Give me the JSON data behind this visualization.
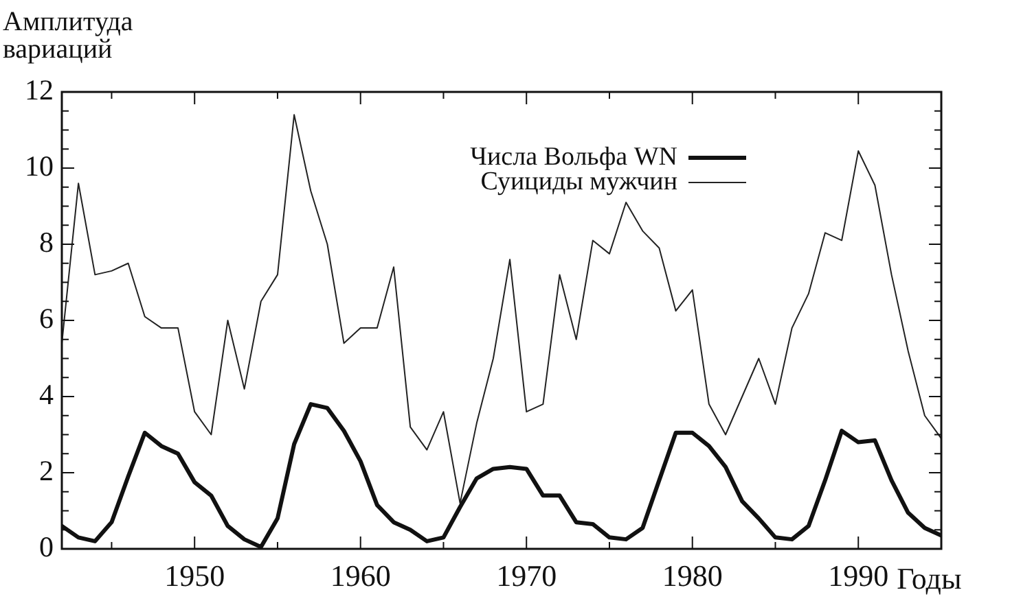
{
  "chart_data": {
    "type": "line",
    "ylabel": "Амплитуда вариаций",
    "xlabel": "Годы",
    "x": [
      1942,
      1943,
      1944,
      1945,
      1946,
      1947,
      1948,
      1949,
      1950,
      1951,
      1952,
      1953,
      1954,
      1955,
      1956,
      1957,
      1958,
      1959,
      1960,
      1961,
      1962,
      1963,
      1964,
      1965,
      1966,
      1967,
      1968,
      1969,
      1970,
      1971,
      1972,
      1973,
      1974,
      1975,
      1976,
      1977,
      1978,
      1979,
      1980,
      1981,
      1982,
      1983,
      1984,
      1985,
      1986,
      1987,
      1988,
      1989,
      1990,
      1991,
      1992,
      1993,
      1994,
      1995
    ],
    "series": [
      {
        "name": "Числа Вольфа WN",
        "color": "#111111",
        "values": [
          0.6,
          0.3,
          0.2,
          0.7,
          1.9,
          3.05,
          2.7,
          2.5,
          1.75,
          1.4,
          0.6,
          0.25,
          0.05,
          0.8,
          2.75,
          3.8,
          3.7,
          3.1,
          2.3,
          1.15,
          0.7,
          0.5,
          0.2,
          0.3,
          1.1,
          1.85,
          2.1,
          2.15,
          2.1,
          1.4,
          1.4,
          0.7,
          0.65,
          0.3,
          0.25,
          0.55,
          1.8,
          3.05,
          3.05,
          2.7,
          2.15,
          1.25,
          0.8,
          0.3,
          0.25,
          0.6,
          1.8,
          3.1,
          2.8,
          2.85,
          1.8,
          0.95,
          0.55,
          0.35
        ]
      },
      {
        "name": "Суициды мужчин",
        "color": "#222222",
        "values": [
          5.4,
          9.6,
          7.2,
          7.3,
          7.5,
          6.1,
          5.8,
          5.8,
          3.6,
          3.0,
          6.0,
          4.2,
          6.5,
          7.2,
          11.4,
          9.4,
          8.0,
          5.4,
          5.8,
          5.8,
          7.4,
          3.2,
          2.6,
          3.6,
          1.2,
          3.3,
          5.0,
          7.6,
          3.6,
          3.8,
          7.2,
          5.5,
          8.1,
          7.75,
          9.1,
          8.35,
          7.9,
          6.25,
          6.8,
          3.8,
          3.0,
          4.0,
          5.0,
          3.8,
          5.8,
          6.7,
          8.3,
          8.1,
          10.45,
          9.55,
          7.2,
          5.2,
          3.5,
          2.9
        ]
      }
    ],
    "xlim": [
      1942,
      1995
    ],
    "xticks": [
      1950,
      1960,
      1970,
      1980,
      1990
    ],
    "ylim": [
      0,
      12
    ],
    "yticks": [
      0,
      2,
      4,
      6,
      8,
      10,
      12
    ],
    "grid": false,
    "legend": "top right",
    "marker": "none",
    "line_style": "solid"
  }
}
